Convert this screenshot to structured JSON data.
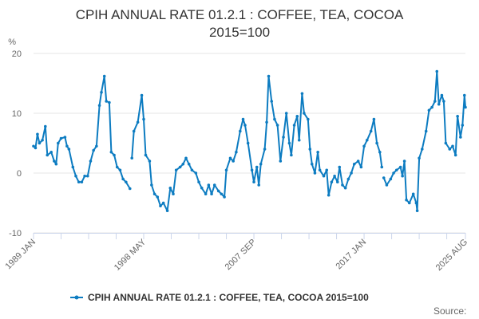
{
  "chart_data": {
    "type": "line",
    "title": "CPIH ANNUAL RATE 01.2.1 : COFFEE, TEA, COCOA 2015=100",
    "title_lines": [
      "CPIH ANNUAL RATE 01.2.1 : COFFEE, TEA, COCOA",
      "2015=100"
    ],
    "ylabel": "%",
    "ylim": [
      -10,
      20
    ],
    "yticks": [
      20,
      10,
      0,
      -10
    ],
    "xticks": [
      "1989 JAN",
      "1998 MAY",
      "2007 SEP",
      "2017 JAN",
      "2025 AUG"
    ],
    "grid": true,
    "legend_position": "bottom",
    "color": "#0d7cc1",
    "source_label": "Source:",
    "series": [
      {
        "name": "CPIH ANNUAL RATE 01.2.1 : COFFEE, TEA, COCOA 2015=100",
        "points": [
          [
            "1989-01",
            4.5
          ],
          [
            "1989-03",
            4.2
          ],
          [
            "1989-05",
            6.5
          ],
          [
            "1989-07",
            5.0
          ],
          [
            "1989-10",
            5.5
          ],
          [
            "1990-01",
            7.8
          ],
          [
            "1990-03",
            3.0
          ],
          [
            "1990-07",
            3.5
          ],
          [
            "1990-10",
            2.0
          ],
          [
            "1990-12",
            1.5
          ],
          [
            "1991-02",
            5.0
          ],
          [
            "1991-05",
            5.8
          ],
          [
            "1991-09",
            6.0
          ],
          [
            "1991-11",
            4.5
          ],
          [
            "1992-01",
            4.0
          ],
          [
            "1992-05",
            1.0
          ],
          [
            "1992-08",
            -0.5
          ],
          [
            "1992-11",
            -1.5
          ],
          [
            "1993-02",
            -1.5
          ],
          [
            "1993-05",
            -0.5
          ],
          [
            "1993-08",
            -0.5
          ],
          [
            "1993-11",
            2.0
          ],
          [
            "1994-02",
            3.8
          ],
          [
            "1994-05",
            4.5
          ],
          [
            "1994-08",
            11.3
          ],
          [
            "1994-10",
            13.5
          ],
          [
            "1995-01",
            16.2
          ],
          [
            "1995-03",
            12.0
          ],
          [
            "1995-06",
            11.8
          ],
          [
            "1995-08",
            3.5
          ],
          [
            "1995-11",
            3.0
          ],
          [
            "1996-02",
            1.0
          ],
          [
            "1996-05",
            0.5
          ],
          [
            "1996-08",
            -1.0
          ],
          [
            "1996-11",
            -1.5
          ],
          [
            "1997-03",
            -2.6
          ],
          [
            "1997-04",
            null
          ],
          [
            "1997-05",
            2.5
          ],
          [
            "1997-07",
            7.0
          ],
          [
            "1997-11",
            8.5
          ],
          [
            "1998-03",
            13.0
          ],
          [
            "1998-05",
            9.0
          ],
          [
            "1998-07",
            3.0
          ],
          [
            "1998-11",
            2.0
          ],
          [
            "1999-01",
            -2.0
          ],
          [
            "1999-04",
            -3.5
          ],
          [
            "1999-07",
            -4.0
          ],
          [
            "1999-10",
            -5.5
          ],
          [
            "2000-01",
            -5.0
          ],
          [
            "2000-05",
            -6.3
          ],
          [
            "2000-08",
            -2.5
          ],
          [
            "2000-11",
            -3.5
          ],
          [
            "2001-02",
            0.5
          ],
          [
            "2001-06",
            1.0
          ],
          [
            "2001-09",
            1.5
          ],
          [
            "2001-12",
            2.5
          ],
          [
            "2002-03",
            1.5
          ],
          [
            "2002-06",
            0.5
          ],
          [
            "2002-10",
            0.0
          ],
          [
            "2003-01",
            -1.5
          ],
          [
            "2003-04",
            -2.5
          ],
          [
            "2003-08",
            -3.5
          ],
          [
            "2003-11",
            -2.0
          ],
          [
            "2004-02",
            -3.5
          ],
          [
            "2004-05",
            -2.0
          ],
          [
            "2004-09",
            -3.0
          ],
          [
            "2004-12",
            -3.5
          ],
          [
            "2005-03",
            -4.0
          ],
          [
            "2005-05",
            0.5
          ],
          [
            "2005-09",
            2.5
          ],
          [
            "2005-12",
            2.0
          ],
          [
            "2006-03",
            3.5
          ],
          [
            "2006-07",
            7.0
          ],
          [
            "2006-10",
            9.0
          ],
          [
            "2006-12",
            8.0
          ],
          [
            "2007-03",
            5.0
          ],
          [
            "2007-07",
            0.5
          ],
          [
            "2007-09",
            -1.5
          ],
          [
            "2007-12",
            1.0
          ],
          [
            "2008-02",
            -2.0
          ],
          [
            "2008-04",
            1.5
          ],
          [
            "2008-08",
            4.0
          ],
          [
            "2008-10",
            8.5
          ],
          [
            "2008-12",
            16.2
          ],
          [
            "2009-03",
            12.0
          ],
          [
            "2009-06",
            9.0
          ],
          [
            "2009-09",
            8.0
          ],
          [
            "2009-12",
            2.0
          ],
          [
            "2010-03",
            6.0
          ],
          [
            "2010-06",
            10.0
          ],
          [
            "2010-09",
            5.0
          ],
          [
            "2010-11",
            3.0
          ],
          [
            "2011-02",
            8.0
          ],
          [
            "2011-05",
            9.5
          ],
          [
            "2011-07",
            5.5
          ],
          [
            "2011-10",
            13.3
          ],
          [
            "2011-12",
            10.0
          ],
          [
            "2012-04",
            9.0
          ],
          [
            "2012-06",
            4.0
          ],
          [
            "2012-08",
            1.5
          ],
          [
            "2012-11",
            0.0
          ],
          [
            "2013-02",
            3.5
          ],
          [
            "2013-04",
            0.5
          ],
          [
            "2013-08",
            -0.5
          ],
          [
            "2013-11",
            0.5
          ],
          [
            "2014-01",
            -3.7
          ],
          [
            "2014-04",
            -1.5
          ],
          [
            "2014-07",
            -0.5
          ],
          [
            "2014-10",
            -1.5
          ],
          [
            "2014-12",
            1.0
          ],
          [
            "2015-03",
            -2.0
          ],
          [
            "2015-06",
            -2.5
          ],
          [
            "2015-09",
            -1.0
          ],
          [
            "2015-12",
            0.0
          ],
          [
            "2016-03",
            1.5
          ],
          [
            "2016-07",
            2.0
          ],
          [
            "2016-10",
            1.0
          ],
          [
            "2017-01",
            4.5
          ],
          [
            "2017-04",
            5.5
          ],
          [
            "2017-08",
            7.0
          ],
          [
            "2017-11",
            9.0
          ],
          [
            "2018-02",
            5.0
          ],
          [
            "2018-05",
            3.5
          ],
          [
            "2018-07",
            1.0
          ],
          [
            "2018-08",
            null
          ],
          [
            "2018-09",
            -0.8
          ],
          [
            "2018-12",
            -2.0
          ],
          [
            "2019-04",
            -1.0
          ],
          [
            "2019-07",
            0.0
          ],
          [
            "2019-10",
            0.5
          ],
          [
            "2020-02",
            1.0
          ],
          [
            "2020-04",
            -0.5
          ],
          [
            "2020-06",
            2.0
          ],
          [
            "2020-08",
            -4.5
          ],
          [
            "2020-11",
            -5.0
          ],
          [
            "2021-03",
            -3.5
          ],
          [
            "2021-06",
            -5.0
          ],
          [
            "2021-07",
            -6.3
          ],
          [
            "2021-09",
            2.5
          ],
          [
            "2021-12",
            4.0
          ],
          [
            "2022-04",
            7.0
          ],
          [
            "2022-07",
            10.5
          ],
          [
            "2022-10",
            11.0
          ],
          [
            "2023-01",
            12.0
          ],
          [
            "2023-03",
            17.0
          ],
          [
            "2023-05",
            11.5
          ],
          [
            "2023-08",
            13.0
          ],
          [
            "2023-10",
            12.0
          ],
          [
            "2023-12",
            5.0
          ],
          [
            "2024-04",
            4.0
          ],
          [
            "2024-07",
            4.5
          ],
          [
            "2024-10",
            3.0
          ],
          [
            "2024-12",
            9.5
          ],
          [
            "2025-03",
            6.0
          ],
          [
            "2025-05",
            8.0
          ],
          [
            "2025-07",
            13.0
          ],
          [
            "2025-08",
            11.0
          ]
        ]
      }
    ]
  }
}
